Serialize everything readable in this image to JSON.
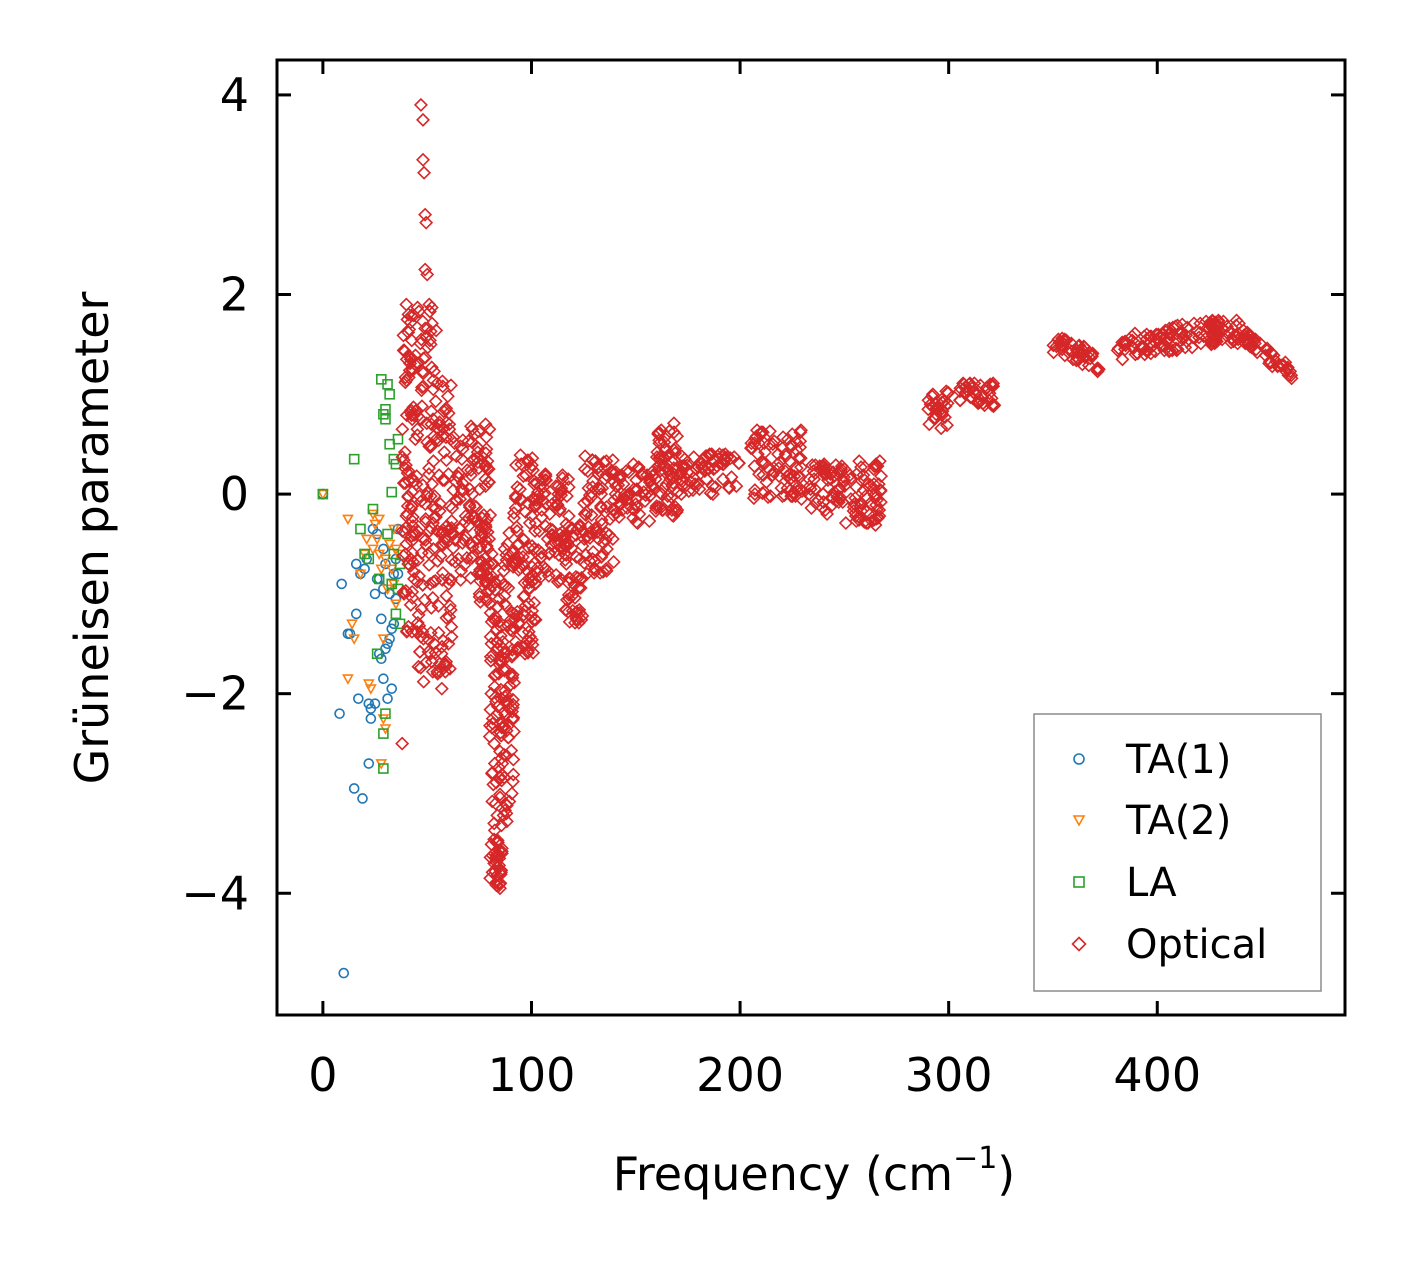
{
  "chart_data": {
    "type": "scatter",
    "title": "",
    "xlabel": "Frequency (cm",
    "xlabel_sup": "−1",
    "xlabel_close": ")",
    "ylabel": "Grüneisen parameter",
    "xlim": [
      -22,
      490
    ],
    "ylim": [
      -5.22,
      4.35
    ],
    "xticks": [
      0,
      100,
      200,
      300,
      400
    ],
    "xtick_labels": [
      "0",
      "100",
      "200",
      "300",
      "400"
    ],
    "yticks": [
      -4,
      -2,
      0,
      2,
      4
    ],
    "ytick_labels": [
      "−4",
      "−2",
      "0",
      "2",
      "4"
    ],
    "legend_position": "bottom-right",
    "colors": {
      "TA(1)": "#1f77b4",
      "TA(2)": "#ff7f0e",
      "LA": "#2ca02c",
      "Optical": "#d62728"
    },
    "series": [
      {
        "name": "TA(1)",
        "marker": "circle",
        "x": [
          0,
          9,
          12,
          13,
          15,
          16,
          16,
          17,
          18,
          19,
          20,
          21,
          22,
          22,
          23,
          23,
          24,
          25,
          25,
          26,
          26,
          27,
          27,
          28,
          28,
          29,
          29,
          29,
          30,
          30,
          31,
          31,
          32,
          32,
          33,
          33,
          34,
          34,
          35,
          35,
          36,
          36,
          8,
          10
        ],
        "y": [
          0.0,
          -0.9,
          -1.4,
          -1.4,
          -2.95,
          -0.7,
          -1.2,
          -2.05,
          -0.8,
          -3.05,
          -0.75,
          -0.65,
          -2.7,
          -2.1,
          -2.15,
          -2.25,
          -0.35,
          -1.0,
          -2.1,
          -0.4,
          -0.85,
          -1.6,
          -0.85,
          -1.25,
          -1.65,
          -0.95,
          -1.85,
          -0.55,
          -0.7,
          -1.55,
          -1.5,
          -2.05,
          -1.45,
          -1.0,
          -1.35,
          -1.95,
          -0.8,
          -1.3,
          -1.05,
          -0.65,
          -0.35,
          -0.8,
          -2.2,
          -4.8
        ]
      },
      {
        "name": "TA(2)",
        "marker": "triangle-down",
        "x": [
          0,
          12,
          14,
          15,
          18,
          20,
          21,
          22,
          23,
          24,
          24,
          25,
          26,
          27,
          27,
          28,
          28,
          29,
          30,
          30,
          31,
          32,
          33,
          34,
          34,
          35,
          35,
          36,
          12,
          29
        ],
        "y": [
          0.0,
          -0.25,
          -1.3,
          -1.45,
          -0.8,
          -0.6,
          -0.45,
          -1.9,
          -1.95,
          -0.55,
          -0.2,
          -0.3,
          -0.45,
          -0.25,
          -0.6,
          -0.75,
          -2.7,
          -2.25,
          -0.65,
          -2.35,
          -0.95,
          -0.5,
          -0.75,
          -0.35,
          -0.9,
          -1.1,
          -0.55,
          -0.6,
          -1.85,
          -1.45
        ]
      },
      {
        "name": "LA",
        "marker": "square",
        "x": [
          0,
          15,
          18,
          20,
          22,
          24,
          26,
          27,
          28,
          29,
          29,
          30,
          30,
          31,
          31,
          32,
          32,
          33,
          33,
          34,
          34,
          35,
          35,
          36,
          36,
          37,
          37,
          30,
          29
        ],
        "y": [
          0.0,
          0.35,
          -0.35,
          -0.6,
          -0.65,
          -0.15,
          -1.6,
          -0.85,
          1.15,
          -2.75,
          -2.4,
          0.85,
          0.75,
          1.1,
          -0.4,
          1.0,
          0.5,
          -0.9,
          0.02,
          -0.6,
          0.35,
          0.3,
          -1.2,
          -0.95,
          0.55,
          -0.7,
          -1.3,
          -2.2,
          0.8
        ]
      },
      {
        "name": "Optical",
        "marker": "diamond",
        "points": []
      }
    ]
  },
  "legend": {
    "entries": [
      "TA(1)",
      "TA(2)",
      "LA",
      "Optical"
    ]
  }
}
